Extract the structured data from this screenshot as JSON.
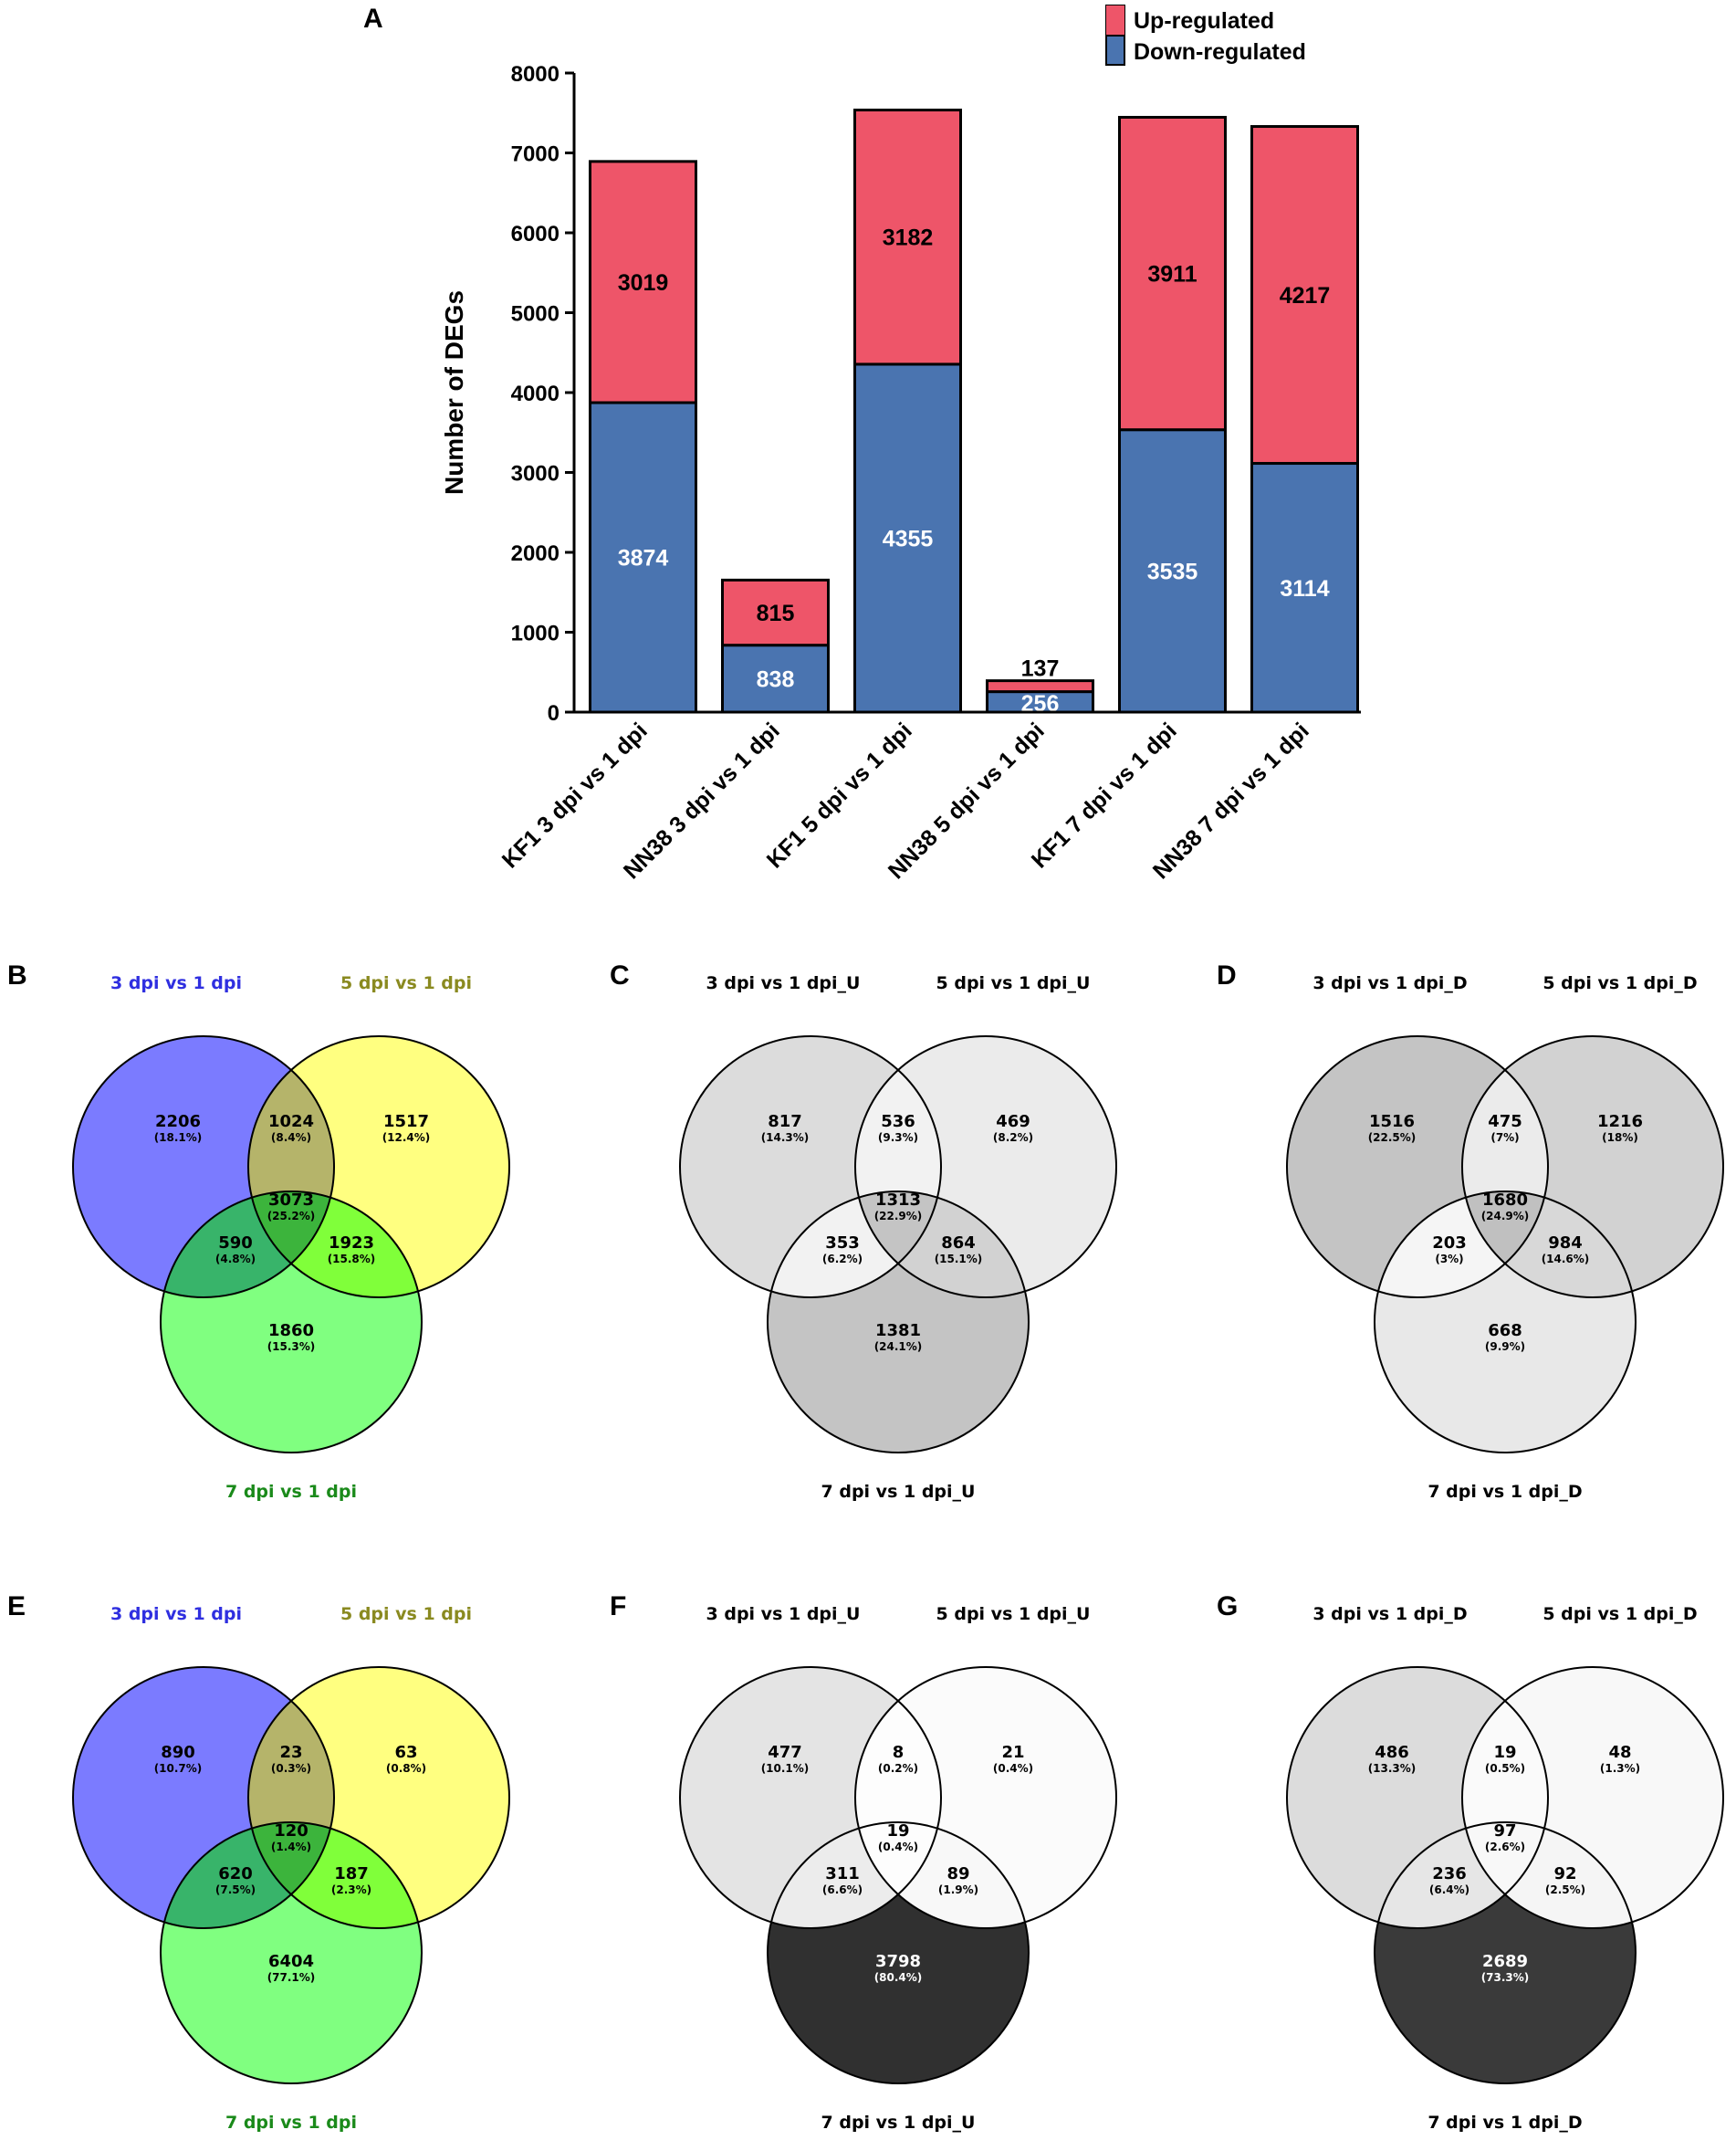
{
  "panel_labels": [
    "A",
    "B",
    "C",
    "D",
    "E",
    "F",
    "G"
  ],
  "colors": {
    "up": "#ee5569",
    "down": "#4a74b0",
    "blue_circle": "#7b7bff",
    "yellow_circle": "#ffff80",
    "green_circle": "#80ff80",
    "blue_title": "#2f2fe0",
    "olive_title": "#8a8a20",
    "green_title": "#1a8a1a"
  },
  "chart_data": [
    {
      "type": "bar",
      "stacked": true,
      "panel": "A",
      "title": "",
      "ylabel": "Number of DEGs",
      "xlabel": "",
      "ylim": [
        0,
        8000
      ],
      "yticks": [
        0,
        1000,
        2000,
        3000,
        4000,
        5000,
        6000,
        7000,
        8000
      ],
      "categories": [
        "KF1 3 dpi vs 1 dpi",
        "NN38 3 dpi vs 1 dpi",
        "KF1 5 dpi vs 1 dpi",
        "NN38 5 dpi vs 1 dpi",
        "KF1 7 dpi vs 1 dpi",
        "NN38 7 dpi vs 1 dpi"
      ],
      "series": [
        {
          "name": "Down-regulated",
          "values": [
            3874,
            838,
            4355,
            256,
            3535,
            3114
          ]
        },
        {
          "name": "Up-regulated",
          "values": [
            3019,
            815,
            3182,
            137,
            3911,
            4217
          ]
        }
      ],
      "legend": [
        "Up-regulated",
        "Down-regulated"
      ],
      "legend_position": "top-right"
    },
    {
      "type": "venn",
      "panel": "B",
      "style": "color",
      "sets": [
        "3 dpi vs 1 dpi",
        "5 dpi vs 1 dpi",
        "7 dpi vs 1 dpi"
      ],
      "regions": {
        "A": {
          "count": "2206",
          "pct": "(18.1%)"
        },
        "AB": {
          "count": "1024",
          "pct": "(8.4%)"
        },
        "B": {
          "count": "1517",
          "pct": "(12.4%)"
        },
        "ABC": {
          "count": "3073",
          "pct": "(25.2%)"
        },
        "AC": {
          "count": "590",
          "pct": "(4.8%)"
        },
        "BC": {
          "count": "1923",
          "pct": "(15.8%)"
        },
        "C": {
          "count": "1860",
          "pct": "(15.3%)"
        }
      }
    },
    {
      "type": "venn",
      "panel": "C",
      "style": "gray",
      "sets": [
        "3 dpi vs 1 dpi_U",
        "5 dpi vs 1 dpi_U",
        "7 dpi vs 1 dpi_U"
      ],
      "regions": {
        "A": {
          "count": "817",
          "pct": "(14.3%)"
        },
        "AB": {
          "count": "536",
          "pct": "(9.3%)"
        },
        "B": {
          "count": "469",
          "pct": "(8.2%)"
        },
        "ABC": {
          "count": "1313",
          "pct": "(22.9%)"
        },
        "AC": {
          "count": "353",
          "pct": "(6.2%)"
        },
        "BC": {
          "count": "864",
          "pct": "(15.1%)"
        },
        "C": {
          "count": "1381",
          "pct": "(24.1%)"
        }
      },
      "fills": {
        "A": "#dcdcdc",
        "B": "#ebebeb",
        "C": "#c4c4c4",
        "AB": "#f2f2f2",
        "AC": "#f2f2f2",
        "BC": "#d2d2d2",
        "ABC": "#c4c4c4"
      }
    },
    {
      "type": "venn",
      "panel": "D",
      "style": "gray",
      "sets": [
        "3 dpi vs 1 dpi_D",
        "5 dpi vs 1 dpi_D",
        "7 dpi vs 1 dpi_D"
      ],
      "regions": {
        "A": {
          "count": "1516",
          "pct": "(22.5%)"
        },
        "AB": {
          "count": "475",
          "pct": "(7%)"
        },
        "B": {
          "count": "1216",
          "pct": "(18%)"
        },
        "ABC": {
          "count": "1680",
          "pct": "(24.9%)"
        },
        "AC": {
          "count": "203",
          "pct": "(3%)"
        },
        "BC": {
          "count": "984",
          "pct": "(14.6%)"
        },
        "C": {
          "count": "668",
          "pct": "(9.9%)"
        }
      },
      "fills": {
        "A": "#c4c4c4",
        "B": "#d2d2d2",
        "C": "#e8e8e8",
        "AB": "#ebebeb",
        "AC": "#f5f5f5",
        "BC": "#d8d8d8",
        "ABC": "#c0c0c0"
      }
    },
    {
      "type": "venn",
      "panel": "E",
      "style": "color",
      "sets": [
        "3 dpi vs 1 dpi",
        "5 dpi vs 1 dpi",
        "7 dpi vs 1 dpi"
      ],
      "regions": {
        "A": {
          "count": "890",
          "pct": "(10.7%)"
        },
        "AB": {
          "count": "23",
          "pct": "(0.3%)"
        },
        "B": {
          "count": "63",
          "pct": "(0.8%)"
        },
        "ABC": {
          "count": "120",
          "pct": "(1.4%)"
        },
        "AC": {
          "count": "620",
          "pct": "(7.5%)"
        },
        "BC": {
          "count": "187",
          "pct": "(2.3%)"
        },
        "C": {
          "count": "6404",
          "pct": "(77.1%)"
        }
      }
    },
    {
      "type": "venn",
      "panel": "F",
      "style": "gray",
      "sets": [
        "3 dpi vs 1 dpi_U",
        "5 dpi vs 1 dpi_U",
        "7 dpi vs 1 dpi_U"
      ],
      "regions": {
        "A": {
          "count": "477",
          "pct": "(10.1%)"
        },
        "AB": {
          "count": "8",
          "pct": "(0.2%)"
        },
        "B": {
          "count": "21",
          "pct": "(0.4%)"
        },
        "ABC": {
          "count": "19",
          "pct": "(0.4%)"
        },
        "AC": {
          "count": "311",
          "pct": "(6.6%)"
        },
        "BC": {
          "count": "89",
          "pct": "(1.9%)"
        },
        "C": {
          "count": "3798",
          "pct": "(80.4%)"
        }
      },
      "fills": {
        "A": "#e4e4e4",
        "B": "#fbfbfb",
        "C": "#303030",
        "AB": "#fdfdfd",
        "AC": "#ececec",
        "BC": "#f8f8f8",
        "ABC": "#fdfdfd"
      }
    },
    {
      "type": "venn",
      "panel": "G",
      "style": "gray",
      "sets": [
        "3 dpi vs 1 dpi_D",
        "5 dpi vs 1 dpi_D",
        "7 dpi vs 1 dpi_D"
      ],
      "regions": {
        "A": {
          "count": "486",
          "pct": "(13.3%)"
        },
        "AB": {
          "count": "19",
          "pct": "(0.5%)"
        },
        "B": {
          "count": "48",
          "pct": "(1.3%)"
        },
        "ABC": {
          "count": "97",
          "pct": "(2.6%)"
        },
        "AC": {
          "count": "236",
          "pct": "(6.4%)"
        },
        "BC": {
          "count": "92",
          "pct": "(2.5%)"
        },
        "C": {
          "count": "2689",
          "pct": "(73.3%)"
        }
      },
      "fills": {
        "A": "#dcdcdc",
        "B": "#f8f8f8",
        "C": "#3a3a3a",
        "AB": "#fafafa",
        "AC": "#e6e6e6",
        "BC": "#f5f5f5",
        "ABC": "#f8f8f8"
      }
    }
  ]
}
